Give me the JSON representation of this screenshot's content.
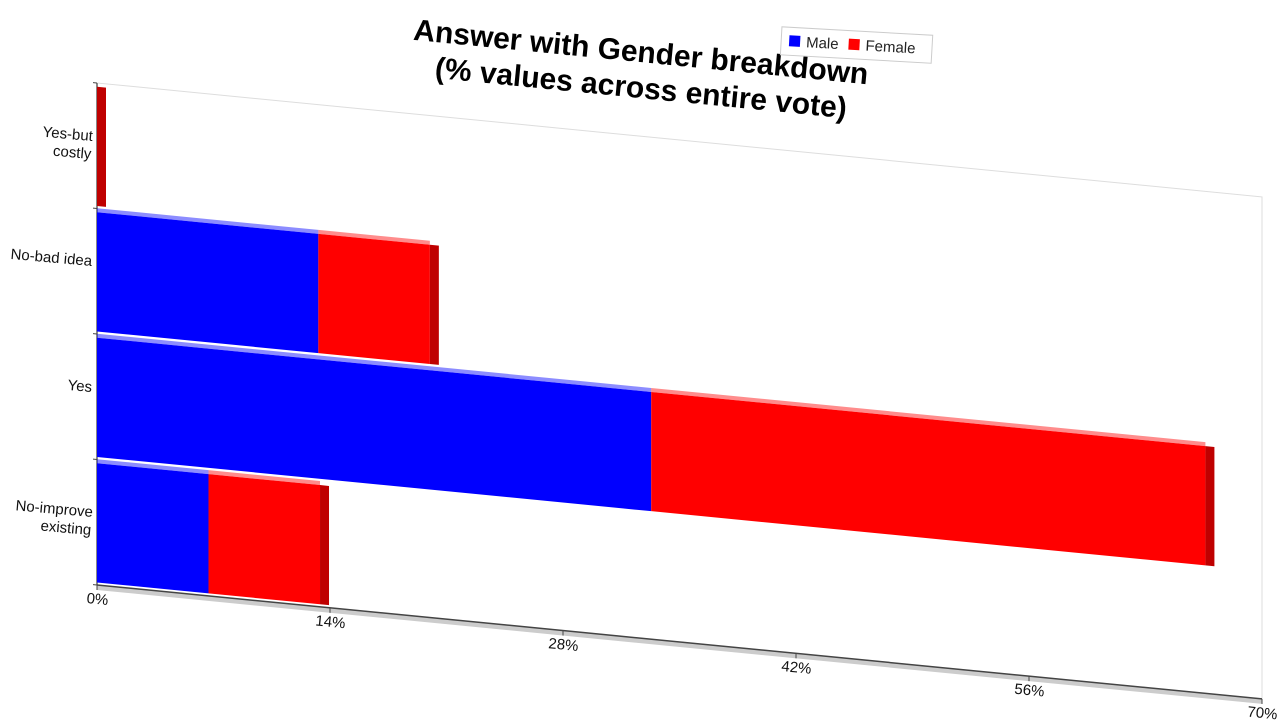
{
  "chart_data": {
    "type": "stacked_bar_horizontal",
    "title": [
      "Answer with Gender breakdown",
      "(% values across entire vote)"
    ],
    "categories": [
      "Yes-but costly",
      "No-bad idea",
      "Yes",
      "No-improve existing"
    ],
    "series": [
      {
        "name": "Male",
        "color": "#0000ff",
        "values": [
          0,
          13.3,
          33.3,
          6.7
        ]
      },
      {
        "name": "Female",
        "color": "#ff0000",
        "values": [
          0,
          6.7,
          33.3,
          6.7
        ]
      }
    ],
    "xlim": [
      0,
      70
    ],
    "xticks": [
      {
        "value": 0,
        "label": "0%"
      },
      {
        "value": 14,
        "label": "14%"
      },
      {
        "value": 28,
        "label": "28%"
      },
      {
        "value": 42,
        "label": "42%"
      },
      {
        "value": 56,
        "label": "56%"
      },
      {
        "value": 70,
        "label": "70%"
      }
    ],
    "legend": "top"
  }
}
